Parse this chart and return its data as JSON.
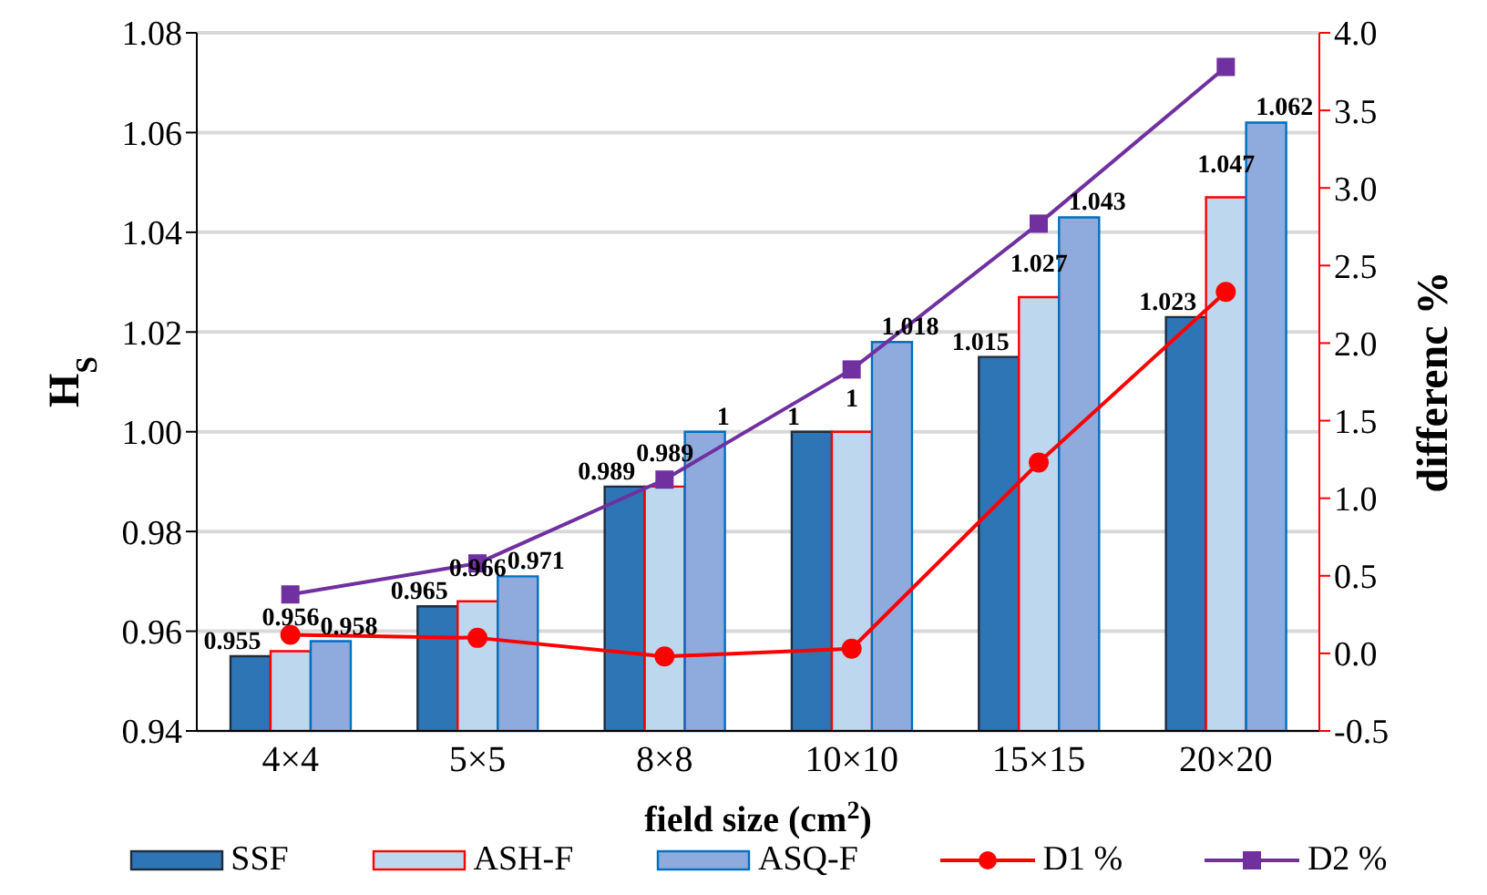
{
  "chart_data": {
    "type": "bar",
    "xlabel": "field size (cm$^{2}$)",
    "ylabel": "H$_{S}$",
    "y2label": "differenc %",
    "categories": [
      "4×4",
      "5×5",
      "8×8",
      "10×10",
      "15×15",
      "20×20"
    ],
    "series": [
      {
        "name": "SSF",
        "color": "#2e75b6",
        "values": [
          0.955,
          0.965,
          0.989,
          1,
          1.015,
          1.023
        ],
        "value_labels": [
          "0.955",
          "0.965",
          "0.989",
          "1",
          "1.015",
          "1.023"
        ]
      },
      {
        "name": "ASH-F",
        "color": "#bdd7ee",
        "values": [
          0.956,
          0.966,
          0.989,
          1,
          1.027,
          1.047
        ],
        "value_labels": [
          "0.956",
          "0.966",
          "0.989",
          "1",
          "1.027",
          "1.047"
        ]
      },
      {
        "name": "ASQ-F",
        "color": "#8faadc",
        "values": [
          0.958,
          0.971,
          1,
          1.018,
          1.043,
          1.062
        ],
        "value_labels": [
          "0.958",
          "0.971",
          "1",
          "1.018",
          "1.043",
          "1.062"
        ]
      },
      {
        "name": "D1 %",
        "type": "line",
        "axis": "y2",
        "color": "#ff0000",
        "marker": "circle",
        "values": [
          0.12,
          0.1,
          -0.02,
          0.03,
          1.23,
          2.33
        ]
      },
      {
        "name": "D2 %",
        "type": "line",
        "axis": "y2",
        "color": "#7030a0",
        "marker": "square",
        "values": [
          0.38,
          0.58,
          1.12,
          1.83,
          2.77,
          3.78
        ]
      }
    ],
    "ylim": [
      0.94,
      1.08
    ],
    "yticks": [
      {
        "value": 0.94,
        "label": "0.94"
      },
      {
        "value": 0.96,
        "label": "0.96"
      },
      {
        "value": 0.98,
        "label": "0.98"
      },
      {
        "value": 1,
        "label": "1.00"
      },
      {
        "value": 1.02,
        "label": "1.02"
      },
      {
        "value": 1.04,
        "label": "1.04"
      },
      {
        "value": 1.06,
        "label": "1.06"
      },
      {
        "value": 1.08,
        "label": "1.08"
      }
    ],
    "y2lim": [
      -0.5,
      4
    ],
    "y2ticks": [
      {
        "value": -0.5,
        "label": "-0.5"
      },
      {
        "value": 0,
        "label": "0.0"
      },
      {
        "value": 0.5,
        "label": "0.5"
      },
      {
        "value": 1,
        "label": "1.0"
      },
      {
        "value": 1.5,
        "label": "1.5"
      },
      {
        "value": 2,
        "label": "2.0"
      },
      {
        "value": 2.5,
        "label": "2.5"
      },
      {
        "value": 3,
        "label": "3.0"
      },
      {
        "value": 3.5,
        "label": "3.5"
      },
      {
        "value": 4,
        "label": "4.0"
      }
    ],
    "grid": "y",
    "legend": "bottom"
  }
}
